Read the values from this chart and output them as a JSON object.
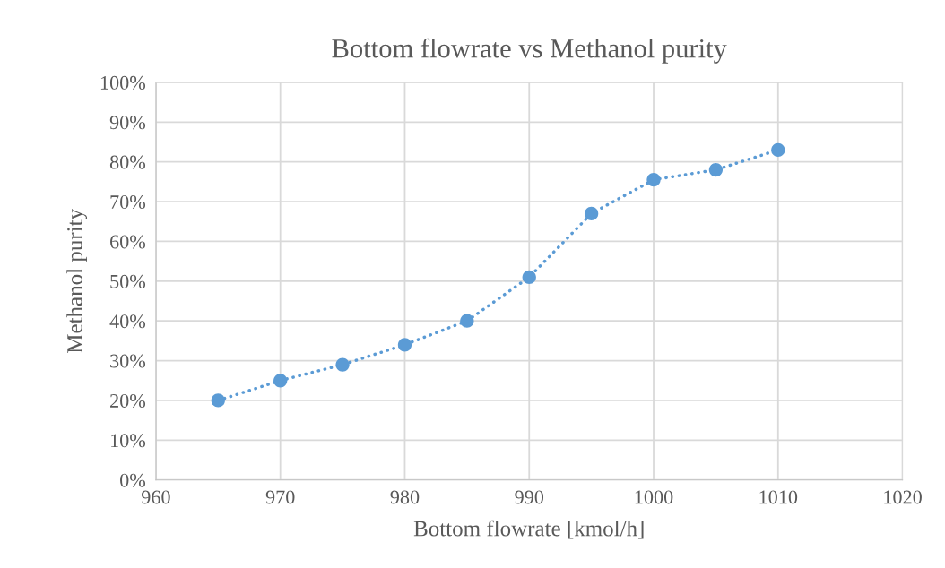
{
  "chart_data": {
    "type": "line",
    "title": "Bottom flowrate vs Methanol purity",
    "xlabel": "Bottom flowrate [kmol/h]",
    "ylabel": "Methanol purity",
    "series": [
      {
        "color": "#5b9bd5",
        "x": [
          965,
          970,
          975,
          980,
          985,
          990,
          995,
          1000,
          1005,
          1010
        ],
        "values": [
          20,
          25,
          29,
          34,
          40,
          51,
          67,
          75.5,
          78,
          83
        ]
      }
    ],
    "xlim": [
      960,
      1020
    ],
    "xticks": [
      960,
      970,
      980,
      990,
      1000,
      1010,
      1020
    ],
    "ylim": [
      0,
      100
    ],
    "yticks": [
      {
        "value": 0,
        "label": "0%"
      },
      {
        "value": 10,
        "label": "10%"
      },
      {
        "value": 20,
        "label": "20%"
      },
      {
        "value": 30,
        "label": "30%"
      },
      {
        "value": 40,
        "label": "40%"
      },
      {
        "value": 50,
        "label": "50%"
      },
      {
        "value": 60,
        "label": "60%"
      },
      {
        "value": 70,
        "label": "70%"
      },
      {
        "value": 80,
        "label": "80%"
      },
      {
        "value": 90,
        "label": "90%"
      },
      {
        "value": 100,
        "label": "100%"
      }
    ],
    "grid": true,
    "marker": "circle",
    "line_style": "dotted"
  }
}
